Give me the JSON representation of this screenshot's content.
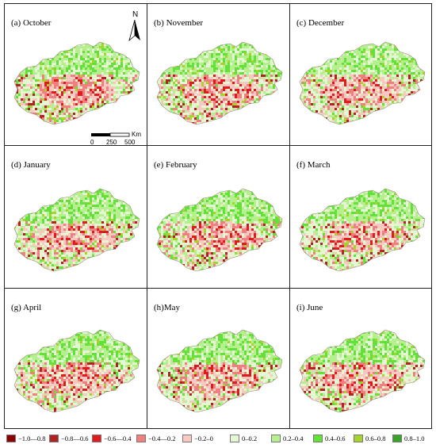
{
  "panels": [
    {
      "label": "(a) October"
    },
    {
      "label": "(b) November"
    },
    {
      "label": "(c) December"
    },
    {
      "label": "(d) January"
    },
    {
      "label": "(e) February"
    },
    {
      "label": "(f) March"
    },
    {
      "label": "(g) April"
    },
    {
      "label": "(h)May"
    },
    {
      "label": "(i) June"
    }
  ],
  "north_arrow": {
    "letter": "N"
  },
  "scale_bar": {
    "ticks": [
      "0",
      "250",
      "500"
    ],
    "unit": "Km"
  },
  "legend": [
    {
      "label": "−1.0—0.8",
      "color": "#8b0000"
    },
    {
      "label": "−0.8—0.6",
      "color": "#b22222"
    },
    {
      "label": "−0.6—0.4",
      "color": "#e31a1c"
    },
    {
      "label": "−0.4—0.2",
      "color": "#f08080"
    },
    {
      "label": "−0.2–0",
      "color": "#f7c9c0"
    },
    {
      "label": "0–0.2",
      "color": "#e4f6d2"
    },
    {
      "label": "0.2–0.4",
      "color": "#b6f08e"
    },
    {
      "label": "0.4–0.6",
      "color": "#63e03a"
    },
    {
      "label": "0.6–0.8",
      "color": "#a6d32c"
    },
    {
      "label": "0.8–1.0",
      "color": "#3aa32a"
    }
  ]
}
